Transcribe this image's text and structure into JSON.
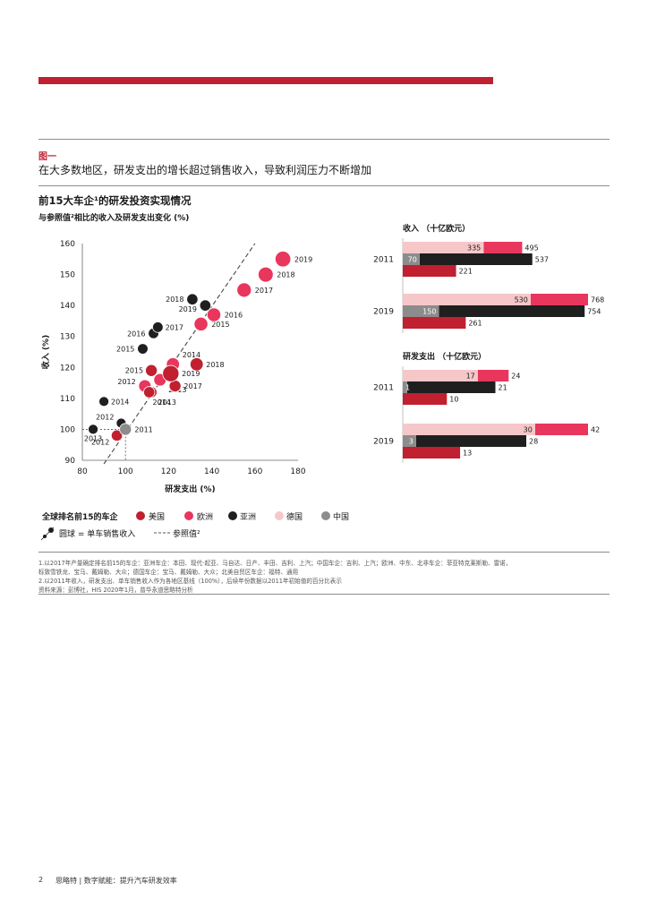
{
  "header": {
    "figure_label": "图一",
    "figure_title": "在大多数地区，研发支出的增长超过销售收入，导致利润压力不断增加"
  },
  "chart_title": "前15大车企¹的研发投资实现情况",
  "chart_subtitle": "与参照值²相比的收入及研发支出变化 (%)",
  "colors": {
    "usa": "#c0202f",
    "europe": "#e8365d",
    "asia": "#1f1f1f",
    "germany": "#f6c7c9",
    "china": "#8c8c8c",
    "accent_bar": "#c0202f"
  },
  "legend": {
    "title": "全球排名前15的车企",
    "usa": "美国",
    "europe": "欧洲",
    "asia": "亚洲",
    "germany": "德国",
    "china": "中国",
    "bubble_note": "圆球 = 单车销售收入",
    "reference_note": "参照值²"
  },
  "chart_data": [
    {
      "type": "scatter",
      "title": "与参照值²相比的收入及研发支出变化 (%)",
      "xlabel": "研发支出 (%)",
      "ylabel": "收入 (%)",
      "xlim": [
        80,
        180
      ],
      "ylim": [
        90,
        160
      ],
      "xticks": [
        80,
        100,
        120,
        140,
        160,
        180
      ],
      "yticks": [
        90,
        100,
        110,
        120,
        130,
        140,
        150,
        160
      ],
      "reference_line": {
        "x": [
          90,
          160
        ],
        "y": [
          90,
          160
        ]
      },
      "series": [
        {
          "name": "欧洲",
          "color_key": "europe",
          "points": [
            {
              "label": "2012",
              "x": 109,
              "y": 114,
              "size": 1.1
            },
            {
              "label": "2013",
              "x": 116,
              "y": 116,
              "size": 1.1
            },
            {
              "label": "2014",
              "x": 122,
              "y": 121,
              "size": 1.2
            },
            {
              "label": "2015",
              "x": 135,
              "y": 134,
              "size": 1.3
            },
            {
              "label": "2016",
              "x": 141,
              "y": 137,
              "size": 1.3
            },
            {
              "label": "2017",
              "x": 155,
              "y": 145,
              "size": 1.4
            },
            {
              "label": "2018",
              "x": 165,
              "y": 150,
              "size": 1.5
            },
            {
              "label": "2019",
              "x": 173,
              "y": 155,
              "size": 1.6
            }
          ]
        },
        {
          "name": "美国",
          "color_key": "usa",
          "points": [
            {
              "label": "2012",
              "x": 96,
              "y": 98,
              "size": 0.9
            },
            {
              "label": "2013",
              "x": 112,
              "y": 112,
              "size": 0.9
            },
            {
              "label": "2014",
              "x": 111,
              "y": 112,
              "size": 0.9
            },
            {
              "label": "2015",
              "x": 112,
              "y": 119,
              "size": 1.0
            },
            {
              "label": "2017",
              "x": 123,
              "y": 114,
              "size": 1.0
            },
            {
              "label": "2018",
              "x": 133,
              "y": 121,
              "size": 1.2
            },
            {
              "label": "2019",
              "x": 121,
              "y": 118,
              "size": 1.7
            }
          ]
        },
        {
          "name": "亚洲",
          "color_key": "asia",
          "points": [
            {
              "label": "2012",
              "x": 98,
              "y": 102,
              "size": 0.7
            },
            {
              "label": "2013",
              "x": 85,
              "y": 100,
              "size": 0.7
            },
            {
              "label": "2014",
              "x": 90,
              "y": 109,
              "size": 0.7
            },
            {
              "label": "2015",
              "x": 108,
              "y": 126,
              "size": 0.8
            },
            {
              "label": "2016",
              "x": 113,
              "y": 131,
              "size": 0.8
            },
            {
              "label": "2017",
              "x": 115,
              "y": 133,
              "size": 0.8
            },
            {
              "label": "2018",
              "x": 131,
              "y": 142,
              "size": 0.9
            },
            {
              "label": "2019",
              "x": 137,
              "y": 140,
              "size": 0.9
            }
          ]
        },
        {
          "name": "中国",
          "color_key": "china",
          "points": [
            {
              "label": "2011",
              "x": 100,
              "y": 100,
              "size": 1.0
            }
          ]
        }
      ]
    },
    {
      "type": "bar",
      "orientation": "horizontal",
      "title": "收入 （十亿欧元）",
      "categories": [
        "2011",
        "2019"
      ],
      "series": [
        {
          "name": "德国",
          "color_key": "germany",
          "values": [
            335,
            530
          ]
        },
        {
          "name": "欧洲",
          "color_key": "europe",
          "values": [
            495,
            768
          ]
        },
        {
          "name": "中国",
          "color_key": "china",
          "values": [
            70,
            150
          ]
        },
        {
          "name": "亚洲",
          "color_key": "asia",
          "values": [
            537,
            754
          ]
        },
        {
          "name": "美国",
          "color_key": "usa",
          "values": [
            221,
            261
          ]
        }
      ],
      "xlim": [
        0,
        768
      ]
    },
    {
      "type": "bar",
      "orientation": "horizontal",
      "title": "研发支出 （十亿欧元）",
      "categories": [
        "2011",
        "2019"
      ],
      "series": [
        {
          "name": "德国",
          "color_key": "germany",
          "values": [
            17,
            30
          ]
        },
        {
          "name": "欧洲",
          "color_key": "europe",
          "values": [
            24,
            42
          ]
        },
        {
          "name": "中国",
          "color_key": "china",
          "values": [
            1,
            3
          ]
        },
        {
          "name": "亚洲",
          "color_key": "asia",
          "values": [
            21,
            28
          ]
        },
        {
          "name": "美国",
          "color_key": "usa",
          "values": [
            10,
            13
          ]
        }
      ],
      "xlim": [
        0,
        42
      ]
    }
  ],
  "footnotes": {
    "line1": "1.以2017年产量确定排名前15的车企：亚洲车企：本田、现代-起亚、马自达、日产、丰田、吉利、上汽；中国车企：吉利、上汽；欧洲、中东、北非车企：菲亚特克莱斯勒、雷诺，",
    "line2": "标致雪铁龙、宝马、戴姆勒、大众；德国车企：宝马、戴姆勒、大众；北美自贸区车企：福特、通用",
    "line3": "2.以2011年收入，研发支出、单车销售收入作为各地区基线（100%），后续年份数据以2011年初始值的百分比表示",
    "line4": "资料来源：彭博社，HIS 2020年1月，普华永道思略特分析"
  },
  "page_footer": {
    "page_number": "2",
    "text": "思略特 | 数字赋能：提升汽车研发效率"
  }
}
